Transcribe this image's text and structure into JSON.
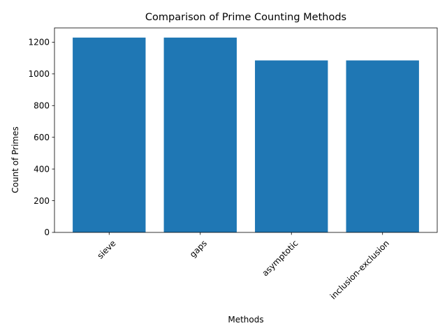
{
  "chart_data": {
    "type": "bar",
    "title": "Comparison of Prime Counting Methods",
    "xlabel": "Methods",
    "ylabel": "Count of Primes",
    "categories": [
      "sieve",
      "gaps",
      "asymptotic",
      "inclusion-exclusion"
    ],
    "values": [
      1229,
      1229,
      1085,
      1085
    ],
    "ylim": [
      0,
      1290
    ],
    "yticks": [
      0,
      200,
      400,
      600,
      800,
      1000,
      1200
    ],
    "bar_color": "#1f77b4",
    "grid": false,
    "xtick_rotation": 45
  }
}
